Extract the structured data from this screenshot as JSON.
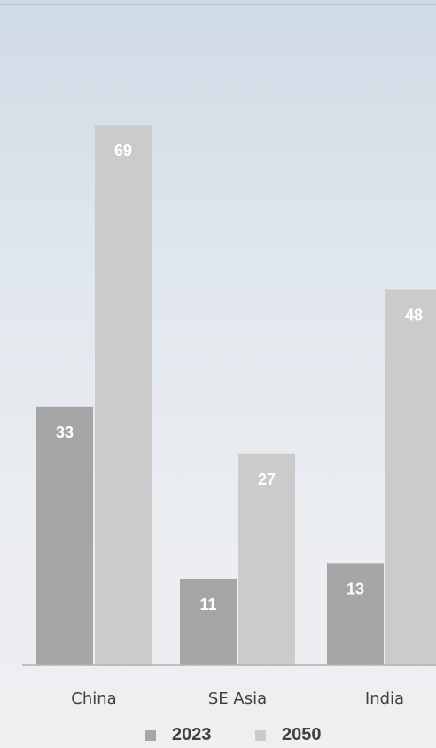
{
  "chart_data": {
    "type": "bar",
    "categories": [
      "China",
      "SE Asia",
      "India"
    ],
    "series": [
      {
        "name": "2023",
        "values": [
          33,
          11,
          13
        ],
        "color": "#a6a6a6"
      },
      {
        "name": "2050",
        "values": [
          69,
          27,
          48
        ],
        "color": "#cbcbcb"
      }
    ],
    "ylim": [
      0,
      85
    ],
    "grid": false,
    "legend_position": "bottom"
  }
}
